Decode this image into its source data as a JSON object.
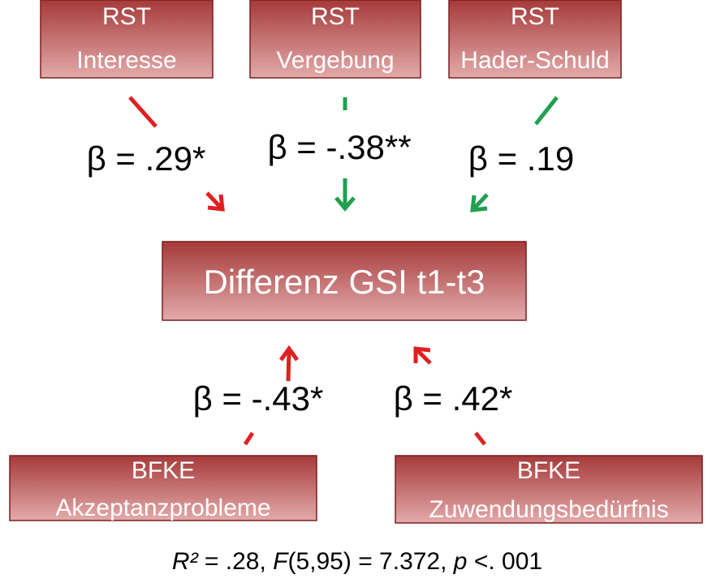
{
  "nodes": [
    {
      "lines": [
        "RST",
        "Interesse"
      ]
    },
    {
      "lines": [
        "RST",
        "Vergebung"
      ]
    },
    {
      "lines": [
        "RST",
        "Hader-Schuld"
      ]
    },
    {
      "lines": [
        "Differenz GSI t1-t3"
      ]
    },
    {
      "lines": [
        "BFKE",
        "Akzeptanzprobleme"
      ]
    },
    {
      "lines": [
        "BFKE",
        "Zuwendungsbedürfnis"
      ]
    }
  ],
  "edges": [
    {
      "label": "β = .29*"
    },
    {
      "label": "β = -.38**"
    },
    {
      "label": "β = .19"
    },
    {
      "label": "β = -.43*"
    },
    {
      "label": "β = .42*"
    }
  ],
  "footer": [
    "R²",
    " = .28, ",
    "F",
    "(5,95) = 7.372, ",
    "p",
    " <. 001"
  ]
}
